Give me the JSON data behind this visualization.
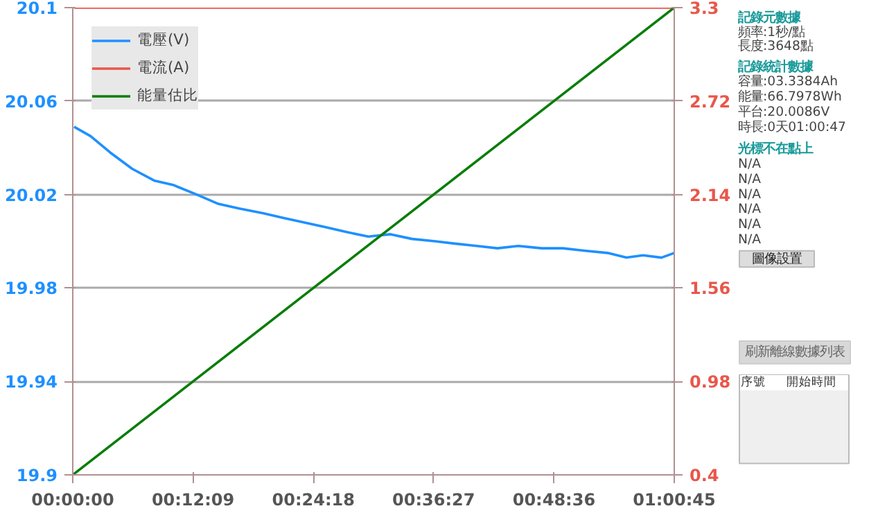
{
  "chart_data": [
    {
      "type": "line",
      "x": [
        0.0022,
        0.03,
        0.063,
        0.1,
        0.137,
        0.17,
        0.2086,
        0.245,
        0.28,
        0.32,
        0.354,
        0.39,
        0.426,
        0.46,
        0.4975,
        0.535,
        0.571,
        0.61,
        0.643,
        0.68,
        0.715,
        0.75,
        0.789,
        0.825,
        0.86,
        0.9,
        0.932,
        0.96,
        0.991,
        1.0125
      ],
      "series": [
        {
          "name": "電壓(V)",
          "color": "#1e90ff",
          "values": [
            20.049,
            20.045,
            20.038,
            20.031,
            20.026,
            20.024,
            20.02,
            20.016,
            20.014,
            20.012,
            20.01,
            20.008,
            20.006,
            20.004,
            20.002,
            20.003,
            20.001,
            20.0,
            19.999,
            19.998,
            19.997,
            19.998,
            19.997,
            19.997,
            19.996,
            19.995,
            19.993,
            19.994,
            19.993,
            19.995
          ]
        },
        {
          "name": "電流(A)",
          "color": "#e8574a",
          "axis": "y2",
          "values": [
            3.3,
            3.3,
            3.3,
            3.3,
            3.3,
            3.3,
            3.3,
            3.3,
            3.3,
            3.3,
            3.3,
            3.3,
            3.3,
            3.3,
            3.3,
            3.3,
            3.3,
            3.3,
            3.3,
            3.3,
            3.3,
            3.3,
            3.3,
            3.3,
            3.3,
            3.3,
            3.3,
            3.3,
            3.3,
            3.3
          ]
        },
        {
          "name": "能量估比",
          "color": "#0a7d0a",
          "axis": "y2",
          "x": [
            0,
            1.0125
          ],
          "values": [
            0.4,
            3.3
          ]
        }
      ],
      "xlim": [
        0,
        1.0125
      ],
      "xticks": [
        {
          "value": 0,
          "label": "00:00:00"
        },
        {
          "value": 0.2025,
          "label": "00:12:09"
        },
        {
          "value": 0.405,
          "label": "00:24:18"
        },
        {
          "value": 0.6075,
          "label": "00:36:27"
        },
        {
          "value": 0.81,
          "label": "00:48:36"
        },
        {
          "value": 1.0125,
          "label": "01:00:45"
        }
      ],
      "ylim": [
        19.9,
        20.1
      ],
      "yticks": [
        19.9,
        19.94,
        19.98,
        20.02,
        20.06,
        20.1
      ],
      "y2lim": [
        0.4,
        3.3
      ],
      "y2ticks": [
        0.4,
        0.98,
        1.56,
        2.14,
        2.72,
        3.3
      ],
      "grid": "y",
      "legend": "top left",
      "marker": "none",
      "line_style": "solid"
    },
    {
      "type": "other",
      "annotations": [
        "記錄元數據",
        "頻率:1秒/點",
        "長度:3648點",
        "記錄統計數據",
        "容量:03.3384Ah",
        "能量:66.7978Wh",
        "平台:20.0086V",
        "時長:0天01:00:47",
        "光標不在點上",
        "N/A",
        "N/A",
        "N/A",
        "N/A",
        "N/A",
        "N/A",
        "圖像設置",
        "刷新離線數據列表",
        "序號",
        "開始時間"
      ]
    }
  ]
}
